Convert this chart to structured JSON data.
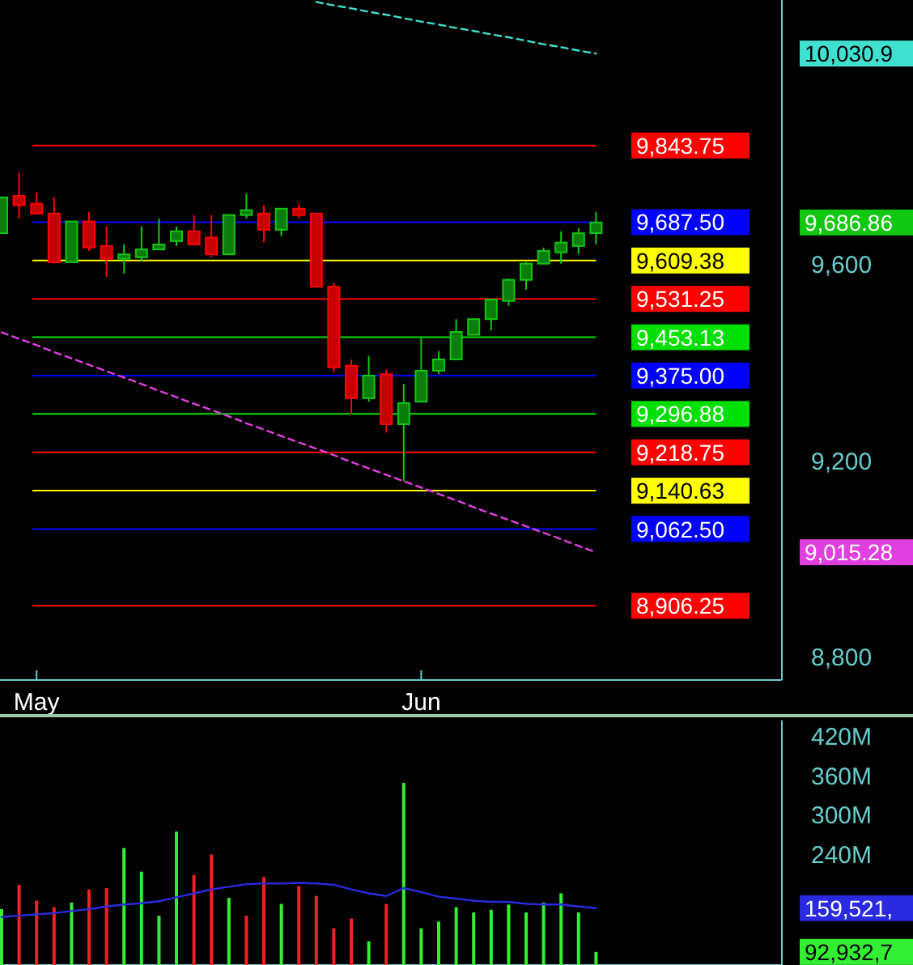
{
  "chart_data": [
    {
      "type": "candlestick",
      "categories": [
        null,
        null,
        "May",
        null,
        null,
        null,
        null,
        null,
        null,
        null,
        null,
        null,
        null,
        null,
        null,
        null,
        null,
        null,
        null,
        null,
        null,
        null,
        null,
        null,
        "Jun",
        null,
        null,
        null,
        null,
        null,
        null,
        null,
        null,
        null,
        null
      ],
      "ohlc": [
        [
          9665,
          9738,
          9665,
          9738
        ],
        [
          9741,
          9788,
          9695,
          9722
        ],
        [
          9725,
          9748,
          9705,
          9705
        ],
        [
          9705,
          9738,
          9603,
          9606
        ],
        [
          9606,
          9689,
          9606,
          9689
        ],
        [
          9689,
          9708,
          9629,
          9636
        ],
        [
          9639,
          9679,
          9576,
          9613
        ],
        [
          9613,
          9642,
          9583,
          9622
        ],
        [
          9616,
          9679,
          9609,
          9632
        ],
        [
          9632,
          9695,
          9632,
          9642
        ],
        [
          9649,
          9679,
          9639,
          9669
        ],
        [
          9669,
          9702,
          9642,
          9642
        ],
        [
          9656,
          9702,
          9616,
          9622
        ],
        [
          9622,
          9702,
          9622,
          9702
        ],
        [
          9702,
          9745,
          9695,
          9712
        ],
        [
          9705,
          9722,
          9646,
          9672
        ],
        [
          9672,
          9715,
          9659,
          9715
        ],
        [
          9715,
          9725,
          9695,
          9702
        ],
        [
          9705,
          9705,
          9556,
          9556
        ],
        [
          9556,
          9563,
          9382,
          9392
        ],
        [
          9395,
          9408,
          9296,
          9329
        ],
        [
          9329,
          9415,
          9322,
          9375
        ],
        [
          9378,
          9388,
          9259,
          9276
        ],
        [
          9276,
          9358,
          9160,
          9319
        ],
        [
          9322,
          9451,
          9322,
          9385
        ],
        [
          9385,
          9425,
          9378,
          9408
        ],
        [
          9408,
          9490,
          9408,
          9464
        ],
        [
          9458,
          9490,
          9458,
          9490
        ],
        [
          9490,
          9530,
          9467,
          9530
        ],
        [
          9527,
          9573,
          9517,
          9570
        ],
        [
          9570,
          9606,
          9550,
          9603
        ],
        [
          9603,
          9636,
          9603,
          9629
        ],
        [
          9626,
          9669,
          9603,
          9646
        ],
        [
          9639,
          9675,
          9622,
          9665
        ],
        [
          9665,
          9708,
          9642,
          9686.86
        ]
      ],
      "colors": [
        "#0b7d0b",
        "#c40000",
        "#c40000",
        "#c40000",
        "#0b7d0b",
        "#c40000",
        "#c40000",
        "#0b7d0b",
        "#0b7d0b",
        "#0b7d0b",
        "#0b7d0b",
        "#c40000",
        "#c40000",
        "#0b7d0b",
        "#0b7d0b",
        "#c40000",
        "#0b7d0b",
        "#c40000",
        "#c40000",
        "#c40000",
        "#c40000",
        "#0b7d0b",
        "#c40000",
        "#0b7d0b",
        "#0b7d0b",
        "#0b7d0b",
        "#0b7d0b",
        "#0b7d0b",
        "#0b7d0b",
        "#0b7d0b",
        "#0b7d0b",
        "#0b7d0b",
        "#0b7d0b",
        "#0b7d0b",
        "#0b7d0b"
      ],
      "annotations": [
        "10,030.9",
        "9,015.28",
        "9,686.86"
      ],
      "series": [
        {
          "type": "line",
          "color": "#40e0d0",
          "line_style": "dashed",
          "values": [
            null,
            null,
            null,
            null,
            null,
            null,
            null,
            null,
            null,
            null,
            null,
            null,
            null,
            null,
            null,
            null,
            null,
            null,
            10136,
            10129,
            10123,
            10116,
            10110,
            10103,
            10096,
            10090,
            10083,
            10077,
            10070,
            10064,
            10057,
            10050,
            10044,
            10037,
            10030.9
          ]
        },
        {
          "type": "line",
          "color": "#e040e0",
          "line_style": "dashed",
          "values": [
            9463,
            9450,
            9437,
            9423,
            9410,
            9397,
            9384,
            9371,
            9358,
            9344,
            9331,
            9318,
            9305,
            9292,
            9278,
            9265,
            9252,
            9239,
            9226,
            9213,
            9199,
            9186,
            9173,
            9160,
            9147,
            9134,
            9121,
            9107,
            9094,
            9081,
            9068,
            9055,
            9042,
            9028,
            9015.28
          ]
        }
      ],
      "ylim": [
        8755,
        10140
      ],
      "yticks": [
        {
          "value": 8800,
          "label": "8,800"
        },
        {
          "value": 9200,
          "label": "9,200"
        },
        {
          "value": 9600,
          "label": "9,600"
        }
      ],
      "ref_lines": [
        {
          "axis": "y",
          "value": 9843.75,
          "label": "9,843.75",
          "color": "#ff0000"
        },
        {
          "axis": "y",
          "value": 9687.5,
          "label": "9,687.50",
          "color": "#0000ff"
        },
        {
          "axis": "y",
          "value": 9609.38,
          "label": "9,609.38",
          "color": "#ffff00"
        },
        {
          "axis": "y",
          "value": 9531.25,
          "label": "9,531.25",
          "color": "#ff0000"
        },
        {
          "axis": "y",
          "value": 9453.13,
          "label": "9,453.13",
          "color": "#00e000"
        },
        {
          "axis": "y",
          "value": 9375,
          "label": "9,375.00",
          "color": "#0000ff"
        },
        {
          "axis": "y",
          "value": 9296.88,
          "label": "9,296.88",
          "color": "#00e000"
        },
        {
          "axis": "y",
          "value": 9218.75,
          "label": "9,218.75",
          "color": "#ff0000"
        },
        {
          "axis": "y",
          "value": 9140.63,
          "label": "9,140.63",
          "color": "#ffff00"
        },
        {
          "axis": "y",
          "value": 9062.5,
          "label": "9,062.50",
          "color": "#0000ff"
        },
        {
          "axis": "y",
          "value": 8906.25,
          "label": "8,906.25",
          "color": "#ff0000"
        }
      ]
    },
    {
      "type": "bar",
      "categories": [
        null,
        null,
        null,
        null,
        null,
        null,
        null,
        null,
        null,
        null,
        null,
        null,
        null,
        null,
        null,
        null,
        null,
        null,
        null,
        null,
        null,
        null,
        null,
        null,
        null,
        null,
        null,
        null,
        null,
        null,
        null,
        null,
        null,
        null,
        null
      ],
      "tick_labels": "y",
      "series": [
        {
          "type": "bar",
          "values": [
            158,
            195,
            171,
            161,
            168,
            188,
            190,
            251,
            215,
            148,
            276,
            210,
            241,
            175,
            148,
            207,
            166,
            193,
            178,
            129,
            144,
            109,
            166,
            350,
            129,
            139,
            161,
            153,
            157,
            165,
            153,
            168,
            182,
            153,
            92.93
          ],
          "colors": [
            "#33ee33",
            "#ee2222",
            "#ee2222",
            "#ee2222",
            "#33ee33",
            "#ee2222",
            "#ee2222",
            "#33ee33",
            "#33ee33",
            "#33ee33",
            "#33ee33",
            "#ee2222",
            "#ee2222",
            "#33ee33",
            "#ee2222",
            "#ee2222",
            "#33ee33",
            "#ee2222",
            "#ee2222",
            "#ee2222",
            "#ee2222",
            "#33ee33",
            "#ee2222",
            "#33ee33",
            "#33ee33",
            "#33ee33",
            "#33ee33",
            "#33ee33",
            "#33ee33",
            "#33ee33",
            "#33ee33",
            "#33ee33",
            "#33ee33",
            "#33ee33",
            "#33ee33"
          ]
        },
        {
          "type": "line",
          "color": "#2a2ae0",
          "values": [
            146,
            148,
            150,
            152,
            155,
            158,
            162,
            165,
            167,
            170,
            176,
            182,
            188,
            192,
            196,
            197,
            197,
            198,
            197,
            195,
            188,
            182,
            178,
            190,
            184,
            177,
            174,
            171,
            169,
            169,
            166,
            165,
            165,
            162,
            159.52
          ]
        }
      ],
      "annotations": [
        "92,932,7",
        "159,521,"
      ],
      "ylim": [
        73,
        445
      ],
      "yticks": [
        {
          "value": 240,
          "label": "240M"
        },
        {
          "value": 300,
          "label": "300M"
        },
        {
          "value": 360,
          "label": "360M"
        },
        {
          "value": 420,
          "label": "420M"
        }
      ]
    }
  ]
}
